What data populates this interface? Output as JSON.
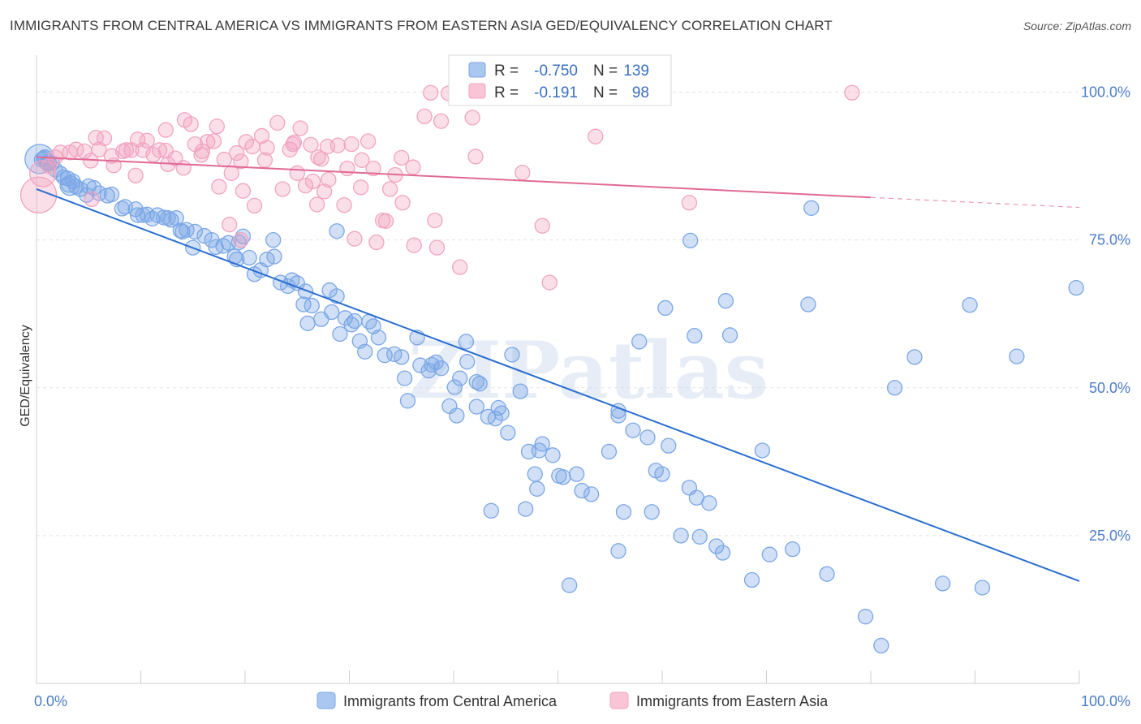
{
  "header": {
    "title": "IMMIGRANTS FROM CENTRAL AMERICA VS IMMIGRANTS FROM EASTERN ASIA GED/EQUIVALENCY CORRELATION CHART",
    "source": "Source: ZipAtlas.com"
  },
  "watermark": "ZIPatlas",
  "chart_data": {
    "type": "scatter",
    "ylabel": "GED/Equivalency",
    "xlim": [
      0,
      100
    ],
    "ylim": [
      0,
      100
    ],
    "x_tick_labels": [
      "0.0%",
      "100.0%"
    ],
    "y_ticks": [
      {
        "value": 100,
        "label": "100.0%"
      },
      {
        "value": 75,
        "label": "75.0%"
      },
      {
        "value": 50,
        "label": "50.0%"
      },
      {
        "value": 25,
        "label": "25.0%"
      }
    ],
    "grid": "dashed horizontal",
    "legend_placement": "bottom-center",
    "stats": [
      {
        "r_label": "R =",
        "r": "-0.750",
        "n_label": "N =",
        "n": "139",
        "color": "#7aa7e6"
      },
      {
        "r_label": "R =",
        "r": "-0.191",
        "n_label": "N =",
        "n": "98",
        "color": "#f2a3bf"
      }
    ],
    "series": [
      {
        "name": "Immigrants from Central America",
        "color": "#7aa7e6",
        "line_color": "#2a6fcf",
        "trend": {
          "x0": 0,
          "y0": 83.6,
          "x1": 100,
          "y1": 17.3
        },
        "points": [
          [
            0.5,
            88.6
          ],
          [
            0.7,
            88.8
          ],
          [
            1,
            88
          ],
          [
            1.2,
            88.1
          ],
          [
            1.5,
            88
          ],
          [
            1.8,
            86.9
          ],
          [
            2.3,
            86.2
          ],
          [
            2.6,
            85.6
          ],
          [
            3,
            85.4
          ],
          [
            3.1,
            84.3
          ],
          [
            3.8,
            84
          ],
          [
            4.2,
            83.6
          ],
          [
            5,
            84.1
          ],
          [
            5.5,
            83.8
          ],
          [
            6.8,
            82.5
          ],
          [
            7.2,
            82.7
          ],
          [
            8.5,
            80.6
          ],
          [
            9.5,
            80.2
          ],
          [
            10.2,
            79.2
          ],
          [
            10.6,
            79.3
          ],
          [
            11.6,
            79.2
          ],
          [
            12.2,
            78.8
          ],
          [
            12.6,
            78.7
          ],
          [
            13.4,
            78.7
          ],
          [
            14,
            76.4
          ],
          [
            14.4,
            76.7
          ],
          [
            15.2,
            76.4
          ],
          [
            15,
            73.7
          ],
          [
            16.1,
            75.7
          ],
          [
            16.8,
            75
          ],
          [
            17.2,
            73.8
          ],
          [
            17.9,
            74
          ],
          [
            18.4,
            74.5
          ],
          [
            19,
            72.2
          ],
          [
            19.4,
            74.6
          ],
          [
            19.8,
            75.6
          ],
          [
            19.2,
            71.7
          ],
          [
            20.4,
            72
          ],
          [
            20.9,
            69.2
          ],
          [
            21.5,
            69.9
          ],
          [
            22.1,
            71.7
          ],
          [
            22.8,
            72.2
          ],
          [
            23.4,
            67.8
          ],
          [
            24.1,
            67.2
          ],
          [
            24.5,
            68.2
          ],
          [
            25,
            67.7
          ],
          [
            25.6,
            64.1
          ],
          [
            25.8,
            66.3
          ],
          [
            26,
            60.9
          ],
          [
            26.4,
            63.9
          ],
          [
            27.3,
            61.6
          ],
          [
            28.3,
            62.8
          ],
          [
            28.1,
            66.5
          ],
          [
            28.8,
            65.5
          ],
          [
            29.1,
            59.1
          ],
          [
            29.6,
            61.8
          ],
          [
            30.2,
            60.7
          ],
          [
            30.5,
            61.3
          ],
          [
            31,
            57.9
          ],
          [
            31.5,
            56.1
          ],
          [
            31.9,
            61.2
          ],
          [
            32.3,
            60.4
          ],
          [
            32.8,
            58.5
          ],
          [
            33.4,
            55.5
          ],
          [
            34.3,
            55.7
          ],
          [
            35,
            55.2
          ],
          [
            35.3,
            51.6
          ],
          [
            35.6,
            47.8
          ],
          [
            36.5,
            58.5
          ],
          [
            36.8,
            53.8
          ],
          [
            37.6,
            52.9
          ],
          [
            37.9,
            53.9
          ],
          [
            38.3,
            54.3
          ],
          [
            38.8,
            53.3
          ],
          [
            39.6,
            46.9
          ],
          [
            40.1,
            50.1
          ],
          [
            40.6,
            51.6
          ],
          [
            40.3,
            45.3
          ],
          [
            41.3,
            54.4
          ],
          [
            41.2,
            57.8
          ],
          [
            42.2,
            51
          ],
          [
            42.5,
            50.7
          ],
          [
            42.2,
            46.8
          ],
          [
            43.3,
            45.1
          ],
          [
            44.3,
            46.6
          ],
          [
            44,
            44.8
          ],
          [
            44.6,
            45.7
          ],
          [
            45.6,
            55.6
          ],
          [
            45.2,
            42.4
          ],
          [
            46.4,
            49.4
          ],
          [
            47.2,
            39.2
          ],
          [
            47.8,
            35.4
          ],
          [
            48,
            32.9
          ],
          [
            48.2,
            39.4
          ],
          [
            48.5,
            40.5
          ],
          [
            49.5,
            38.6
          ],
          [
            50.1,
            35.1
          ],
          [
            50.5,
            34.9
          ],
          [
            51.8,
            35.4
          ],
          [
            52.3,
            32.6
          ],
          [
            53.2,
            32
          ],
          [
            54.9,
            39.2
          ],
          [
            55.8,
            45.3
          ],
          [
            55.8,
            46.1
          ],
          [
            56.3,
            29
          ],
          [
            57.2,
            42.8
          ],
          [
            58.6,
            41.6
          ],
          [
            59.4,
            36
          ],
          [
            60,
            35.4
          ],
          [
            60.6,
            40.2
          ],
          [
            61.8,
            25
          ],
          [
            62.6,
            33.1
          ],
          [
            63.3,
            31.4
          ],
          [
            63.6,
            24.8
          ],
          [
            64.5,
            30.5
          ],
          [
            65.2,
            23.2
          ],
          [
            65.8,
            22.1
          ],
          [
            66.1,
            64.7
          ],
          [
            66.5,
            58.9
          ],
          [
            68.6,
            17.5
          ],
          [
            69.6,
            39.4
          ],
          [
            70.3,
            21.8
          ],
          [
            72.5,
            22.7
          ],
          [
            75.8,
            18.5
          ],
          [
            79.5,
            11.3
          ],
          [
            81,
            6.4
          ],
          [
            82.3,
            50
          ],
          [
            84.2,
            55.2
          ],
          [
            86.9,
            16.9
          ],
          [
            90.7,
            16.2
          ],
          [
            55.8,
            22.4
          ],
          [
            99.7,
            66.9
          ],
          [
            57.8,
            57.8
          ],
          [
            60.3,
            63.5
          ],
          [
            62.7,
            74.9
          ],
          [
            63.1,
            58.8
          ],
          [
            74,
            64.1
          ],
          [
            74.3,
            80.4
          ],
          [
            89.5,
            64
          ],
          [
            94,
            55.3
          ],
          [
            43.6,
            29.2
          ],
          [
            46.9,
            29.5
          ],
          [
            59,
            29
          ],
          [
            51.1,
            16.6
          ],
          [
            22.7,
            75
          ],
          [
            28.8,
            76.5
          ],
          [
            0.8,
            89
          ],
          [
            1.2,
            87.9
          ],
          [
            3.5,
            84.9
          ],
          [
            4.8,
            82.6
          ],
          [
            6,
            82.9
          ],
          [
            8.2,
            80.3
          ],
          [
            9.7,
            79.2
          ],
          [
            11.1,
            78.6
          ],
          [
            12.9,
            78.4
          ],
          [
            13.8,
            76.6
          ]
        ],
        "large_points": [
          [
            0.3,
            88.7,
            18
          ],
          [
            3.2,
            84.2,
            12
          ]
        ]
      },
      {
        "name": "Immigrants from Eastern Asia",
        "color": "#f2a3bf",
        "line_color": "#e06a94",
        "trend": {
          "x0": 0,
          "y0": 89,
          "x1": 80,
          "y1": 82.2
        },
        "trend_dashed": {
          "x0": 80,
          "y0": 82.2,
          "x1": 100,
          "y1": 80.5
        },
        "points": [
          [
            1.2,
            87.5
          ],
          [
            1.8,
            89
          ],
          [
            2.3,
            89.8
          ],
          [
            3.2,
            89.8
          ],
          [
            3.8,
            90.3
          ],
          [
            4.6,
            90
          ],
          [
            5.2,
            88.4
          ],
          [
            5.3,
            81.9
          ],
          [
            5.7,
            92.3
          ],
          [
            6,
            90.3
          ],
          [
            6.5,
            92.2
          ],
          [
            7.2,
            89.2
          ],
          [
            7.4,
            87.6
          ],
          [
            8.3,
            90
          ],
          [
            8.6,
            90.2
          ],
          [
            9.1,
            90.2
          ],
          [
            9.7,
            92
          ],
          [
            9.5,
            85.9
          ],
          [
            10.2,
            90.2
          ],
          [
            10.6,
            91.8
          ],
          [
            11.2,
            89.4
          ],
          [
            11.8,
            90.2
          ],
          [
            12.4,
            90.1
          ],
          [
            12.6,
            87.8
          ],
          [
            12.4,
            93.6
          ],
          [
            13.3,
            88.8
          ],
          [
            14.2,
            95.3
          ],
          [
            14.8,
            94.6
          ],
          [
            15.2,
            91.2
          ],
          [
            15.9,
            90
          ],
          [
            16.4,
            91.6
          ],
          [
            17.3,
            94.2
          ],
          [
            17.5,
            84
          ],
          [
            18,
            88.6
          ],
          [
            18.7,
            86.3
          ],
          [
            19.2,
            89.7
          ],
          [
            19.6,
            88.3
          ],
          [
            20.1,
            91.6
          ],
          [
            20.7,
            90.8
          ],
          [
            20.9,
            80.8
          ],
          [
            21.6,
            92.6
          ],
          [
            22.1,
            90.6
          ],
          [
            23.1,
            94.8
          ],
          [
            24.3,
            90.3
          ],
          [
            24.6,
            91.2
          ],
          [
            25,
            86.3
          ],
          [
            25.3,
            93.9
          ],
          [
            25.8,
            84.2
          ],
          [
            26.3,
            91.1
          ],
          [
            27,
            89
          ],
          [
            27.3,
            88.7
          ],
          [
            27.6,
            83.2
          ],
          [
            28,
            85.2
          ],
          [
            28.9,
            91
          ],
          [
            29.5,
            80.9
          ],
          [
            29.8,
            87.1
          ],
          [
            30.5,
            75.2
          ],
          [
            31.2,
            88.5
          ],
          [
            31.8,
            91.7
          ],
          [
            32.6,
            74.6
          ],
          [
            33.2,
            78.3
          ],
          [
            33.5,
            78.2
          ],
          [
            33.9,
            83.6
          ],
          [
            34.4,
            86
          ],
          [
            35.1,
            81.3
          ],
          [
            36.2,
            74.1
          ],
          [
            37.2,
            95.9
          ],
          [
            37.8,
            99.9
          ],
          [
            38.4,
            73.7
          ],
          [
            38.8,
            95.1
          ],
          [
            39.5,
            99.8
          ],
          [
            40.6,
            70.4
          ],
          [
            42.1,
            89.1
          ],
          [
            46.6,
            86.4
          ],
          [
            48.5,
            77.4
          ],
          [
            49.2,
            67.8
          ],
          [
            53.6,
            92.5
          ],
          [
            56.6,
            99.8
          ],
          [
            62.6,
            81.3
          ],
          [
            78.2,
            99.9
          ],
          [
            15.8,
            89.4
          ],
          [
            17,
            91.7
          ],
          [
            19.8,
            83.3
          ],
          [
            21.9,
            88.5
          ],
          [
            23.6,
            83.6
          ],
          [
            24.7,
            91.5
          ],
          [
            26.5,
            84.9
          ],
          [
            27.9,
            90.8
          ],
          [
            30.2,
            91.2
          ],
          [
            31.1,
            83.9
          ],
          [
            32.3,
            87.1
          ],
          [
            35,
            88.9
          ],
          [
            36.1,
            87.3
          ],
          [
            38.2,
            78.3
          ],
          [
            41.8,
            95.7
          ],
          [
            26.9,
            81
          ],
          [
            14.1,
            87.2
          ],
          [
            19.6,
            75
          ],
          [
            18.5,
            77.6
          ]
        ],
        "large_points": [
          [
            0.2,
            82.6,
            22
          ],
          [
            0.6,
            86.2,
            16
          ]
        ]
      }
    ]
  }
}
